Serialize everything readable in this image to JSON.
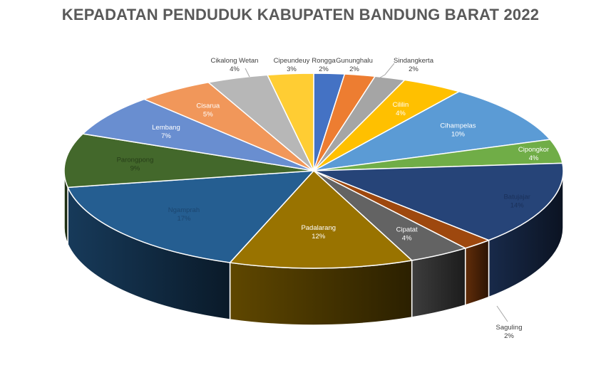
{
  "chart_data": {
    "type": "pie",
    "title": "KEPADATAN PENDUDUK KABUPATEN BANDUNG BARAT 2022",
    "slices": [
      {
        "label": "Rongga",
        "percent_label": "2%",
        "value": 2,
        "color": "#4472C4"
      },
      {
        "label": "Gununghalu",
        "percent_label": "2%",
        "value": 2,
        "color": "#ED7D31"
      },
      {
        "label": "Sindangkerta",
        "percent_label": "2%",
        "value": 2,
        "color": "#A5A5A5"
      },
      {
        "label": "Cililin",
        "percent_label": "4%",
        "value": 4,
        "color": "#FFC000"
      },
      {
        "label": "Cihampelas",
        "percent_label": "10%",
        "value": 10,
        "color": "#5B9BD5"
      },
      {
        "label": "Cipongkor",
        "percent_label": "4%",
        "value": 4,
        "color": "#70AD47"
      },
      {
        "label": "Batujajar",
        "percent_label": "14%",
        "value": 14,
        "color": "#264478"
      },
      {
        "label": "Saguling",
        "percent_label": "2%",
        "value": 2,
        "color": "#9E480E"
      },
      {
        "label": "Cipatat",
        "percent_label": "4%",
        "value": 4,
        "color": "#636363"
      },
      {
        "label": "Padalarang",
        "percent_label": "12%",
        "value": 12,
        "color": "#997300"
      },
      {
        "label": "Ngamprah",
        "percent_label": "17%",
        "value": 17,
        "color": "#255E91"
      },
      {
        "label": "Parongpong",
        "percent_label": "9%",
        "value": 9,
        "color": "#43682B"
      },
      {
        "label": "Lembang",
        "percent_label": "7%",
        "value": 7,
        "color": "#698ED0"
      },
      {
        "label": "Cisarua",
        "percent_label": "5%",
        "value": 5,
        "color": "#F1975A"
      },
      {
        "label": "Cikalong Wetan",
        "percent_label": "4%",
        "value": 4,
        "color": "#B7B7B7"
      },
      {
        "label": "Cipeundeuy",
        "percent_label": "3%",
        "value": 3,
        "color": "#FFCD33"
      }
    ]
  }
}
